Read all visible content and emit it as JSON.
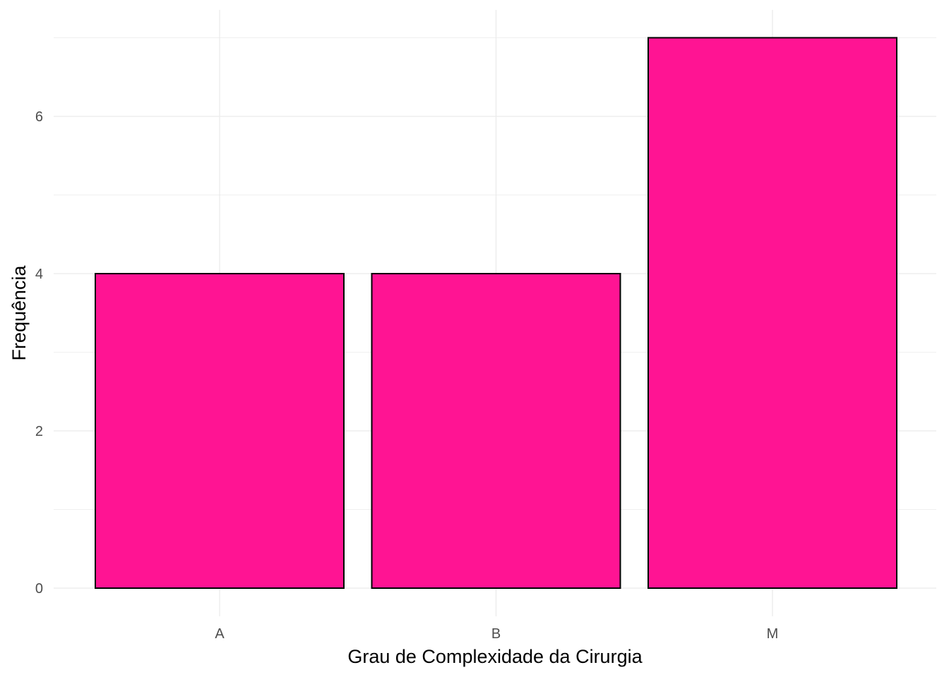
{
  "chart_data": {
    "type": "bar",
    "title": "",
    "xlabel": "Grau de Complexidade da Cirurgia",
    "ylabel": "Frequência",
    "categories": [
      "A",
      "B",
      "M"
    ],
    "values": [
      4,
      4,
      7
    ],
    "ylim": [
      0,
      7
    ],
    "yticks": [
      0,
      2,
      4,
      6
    ],
    "ytick_labels": [
      "0",
      "2",
      "4",
      "6"
    ],
    "grid": true,
    "legend": "none",
    "colors": {
      "bar_fill": "#FF1493",
      "bar_outline": "#000000",
      "grid": "#EBEBEB",
      "tick_text": "#4D4D4D",
      "axis_title": "#000000",
      "background": "#FFFFFF"
    }
  }
}
